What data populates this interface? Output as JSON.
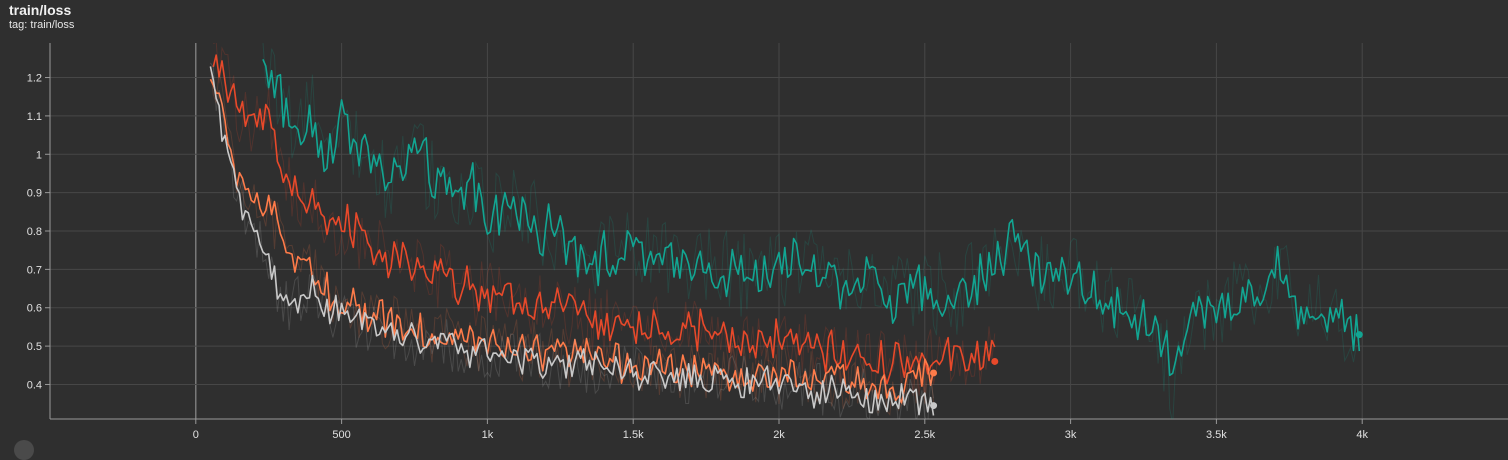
{
  "header": {
    "title": "train/loss",
    "tag": "tag: train/loss"
  },
  "chart_data": {
    "type": "line",
    "title": "train/loss",
    "xlabel": "",
    "ylabel": "",
    "xlim": [
      -500,
      4500
    ],
    "ylim": [
      0.31,
      1.29
    ],
    "x_ticks": [
      0,
      500,
      1000,
      1500,
      2000,
      2500,
      3000,
      3500,
      4000
    ],
    "x_tick_labels": [
      "0",
      "500",
      "1k",
      "1.5k",
      "2k",
      "2.5k",
      "3k",
      "3.5k",
      "4k"
    ],
    "y_ticks": [
      0.4,
      0.5,
      0.6,
      0.7,
      0.8,
      0.9,
      1.0,
      1.1,
      1.2
    ],
    "y_tick_labels": [
      "0.4",
      "0.5",
      "0.6",
      "0.7",
      "0.8",
      "0.9",
      "1",
      "1.1",
      "1.2"
    ],
    "grid": true,
    "series": [
      {
        "color": "#12a592",
        "x": [
          230,
          270,
          300,
          350,
          400,
          450,
          500,
          550,
          600,
          650,
          700,
          750,
          800,
          850,
          900,
          950,
          1000,
          1100,
          1200,
          1300,
          1400,
          1500,
          1600,
          1700,
          1800,
          1900,
          2000,
          2100,
          2200,
          2300,
          2400,
          2500,
          2600,
          2700,
          2800,
          2900,
          3000,
          3100,
          3200,
          3300,
          3350,
          3400,
          3500,
          3600,
          3700,
          3800,
          3900,
          3950,
          3990
        ],
        "y": [
          1.24,
          1.2,
          1.12,
          1.05,
          1.1,
          1.0,
          1.08,
          1.05,
          0.98,
          0.93,
          0.96,
          1.02,
          0.95,
          0.9,
          0.88,
          0.92,
          0.85,
          0.86,
          0.8,
          0.76,
          0.73,
          0.75,
          0.71,
          0.73,
          0.7,
          0.68,
          0.7,
          0.72,
          0.67,
          0.68,
          0.62,
          0.65,
          0.62,
          0.69,
          0.78,
          0.68,
          0.7,
          0.61,
          0.6,
          0.55,
          0.4,
          0.58,
          0.6,
          0.62,
          0.7,
          0.6,
          0.58,
          0.55,
          0.53
        ]
      },
      {
        "color": "#e8492a",
        "x": [
          60,
          100,
          150,
          200,
          250,
          300,
          350,
          400,
          450,
          500,
          600,
          700,
          800,
          900,
          1000,
          1100,
          1200,
          1300,
          1400,
          1500,
          1600,
          1700,
          1800,
          1900,
          2000,
          2100,
          2200,
          2300,
          2400,
          2500,
          2600,
          2700,
          2740
        ],
        "y": [
          1.25,
          1.2,
          1.12,
          1.08,
          1.1,
          0.95,
          0.9,
          0.88,
          0.8,
          0.83,
          0.75,
          0.72,
          0.7,
          0.66,
          0.63,
          0.62,
          0.6,
          0.58,
          0.56,
          0.55,
          0.55,
          0.54,
          0.52,
          0.5,
          0.52,
          0.5,
          0.48,
          0.47,
          0.46,
          0.45,
          0.47,
          0.48,
          0.46
        ]
      },
      {
        "color": "#ff7b49",
        "x": [
          50,
          80,
          120,
          160,
          200,
          250,
          300,
          350,
          400,
          450,
          500,
          600,
          700,
          800,
          900,
          1000,
          1100,
          1200,
          1300,
          1400,
          1500,
          1600,
          1700,
          1800,
          1900,
          2000,
          2100,
          2200,
          2300,
          2400,
          2500,
          2530
        ],
        "y": [
          1.2,
          1.15,
          1.0,
          0.92,
          0.88,
          0.85,
          0.78,
          0.72,
          0.68,
          0.65,
          0.62,
          0.58,
          0.56,
          0.53,
          0.52,
          0.5,
          0.49,
          0.48,
          0.47,
          0.46,
          0.45,
          0.45,
          0.44,
          0.43,
          0.43,
          0.42,
          0.41,
          0.41,
          0.4,
          0.4,
          0.42,
          0.43
        ]
      },
      {
        "color": "#c9c9c9",
        "x": [
          50,
          80,
          120,
          160,
          200,
          250,
          300,
          350,
          400,
          450,
          500,
          600,
          700,
          800,
          900,
          1000,
          1100,
          1200,
          1300,
          1400,
          1500,
          1600,
          1700,
          1800,
          1900,
          2000,
          2100,
          2200,
          2300,
          2400,
          2480,
          2530
        ],
        "y": [
          1.22,
          1.1,
          0.95,
          0.88,
          0.8,
          0.7,
          0.6,
          0.62,
          0.65,
          0.6,
          0.58,
          0.55,
          0.53,
          0.5,
          0.5,
          0.48,
          0.47,
          0.46,
          0.45,
          0.44,
          0.43,
          0.42,
          0.42,
          0.41,
          0.41,
          0.4,
          0.39,
          0.38,
          0.37,
          0.36,
          0.35,
          0.345
        ]
      }
    ]
  }
}
